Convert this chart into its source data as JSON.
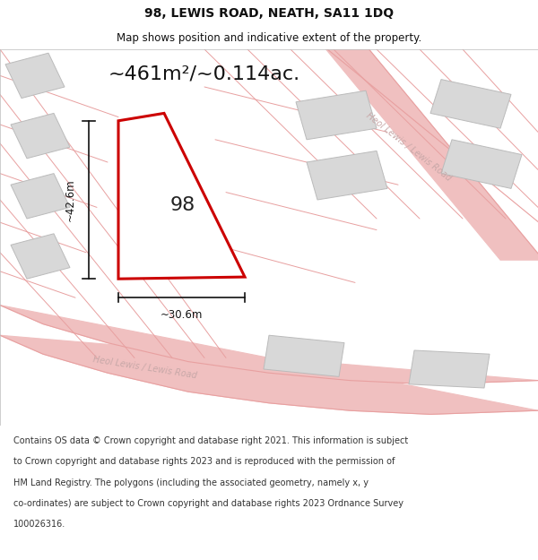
{
  "title": "98, LEWIS ROAD, NEATH, SA11 1DQ",
  "subtitle": "Map shows position and indicative extent of the property.",
  "area_text": "~461m²/~0.114ac.",
  "dim_width": "~30.6m",
  "dim_height": "~42.6m",
  "label_98": "98",
  "background_color": "#ffffff",
  "map_bg": "#f5eeee",
  "road_fill": "#f0c0c0",
  "road_edge": "#e8a0a0",
  "parcel_fill": "#d8d8d8",
  "parcel_edge": "#bbbbbb",
  "highlight_fill": "#ffffff",
  "highlight_line": "#cc0000",
  "dim_line_color": "#111111",
  "text_color": "#111111",
  "road_label_color": "#c8a8a8",
  "road1_label": "Heol Lewis / Lewis Road",
  "road2_label": "Heol Lewis / Lewis Road",
  "footer_lines": [
    "Contains OS data © Crown copyright and database right 2021. This information is subject",
    "to Crown copyright and database rights 2023 and is reproduced with the permission of",
    "HM Land Registry. The polygons (including the associated geometry, namely x, y",
    "co-ordinates) are subject to Crown copyright and database rights 2023 Ordnance Survey",
    "100026316."
  ],
  "title_fontsize": 10,
  "subtitle_fontsize": 8.5,
  "area_fontsize": 16,
  "label_fontsize": 16,
  "dim_fontsize": 8.5,
  "road_label_fontsize": 7,
  "footer_fontsize": 7
}
